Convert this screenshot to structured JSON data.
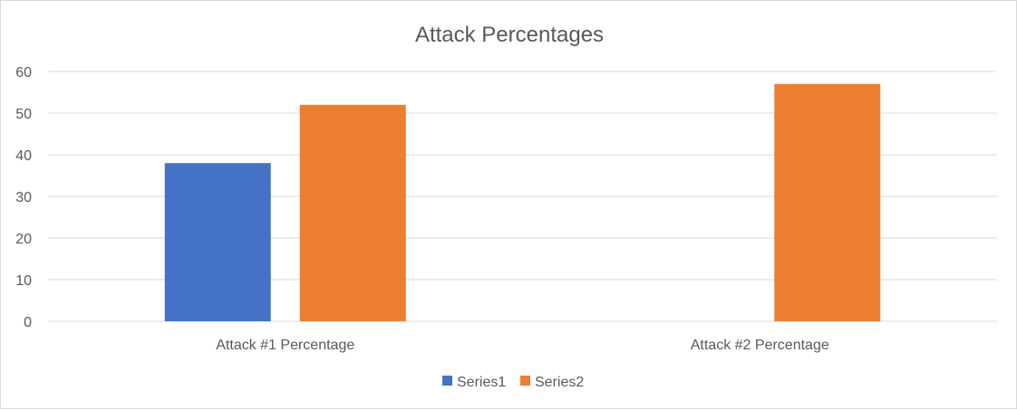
{
  "chart_data": {
    "type": "bar",
    "title": "Attack Percentages",
    "categories": [
      "Attack #1 Percentage",
      "Attack #2 Percentage"
    ],
    "series": [
      {
        "name": "Series1",
        "values": [
          38,
          0
        ],
        "color": "#4472C4"
      },
      {
        "name": "Series2",
        "values": [
          52,
          57
        ],
        "color": "#ED7D31"
      }
    ],
    "ylim": [
      0,
      60
    ],
    "yticks": [
      0,
      10,
      20,
      30,
      40,
      50,
      60
    ],
    "grid": true,
    "legend_position": "bottom"
  }
}
